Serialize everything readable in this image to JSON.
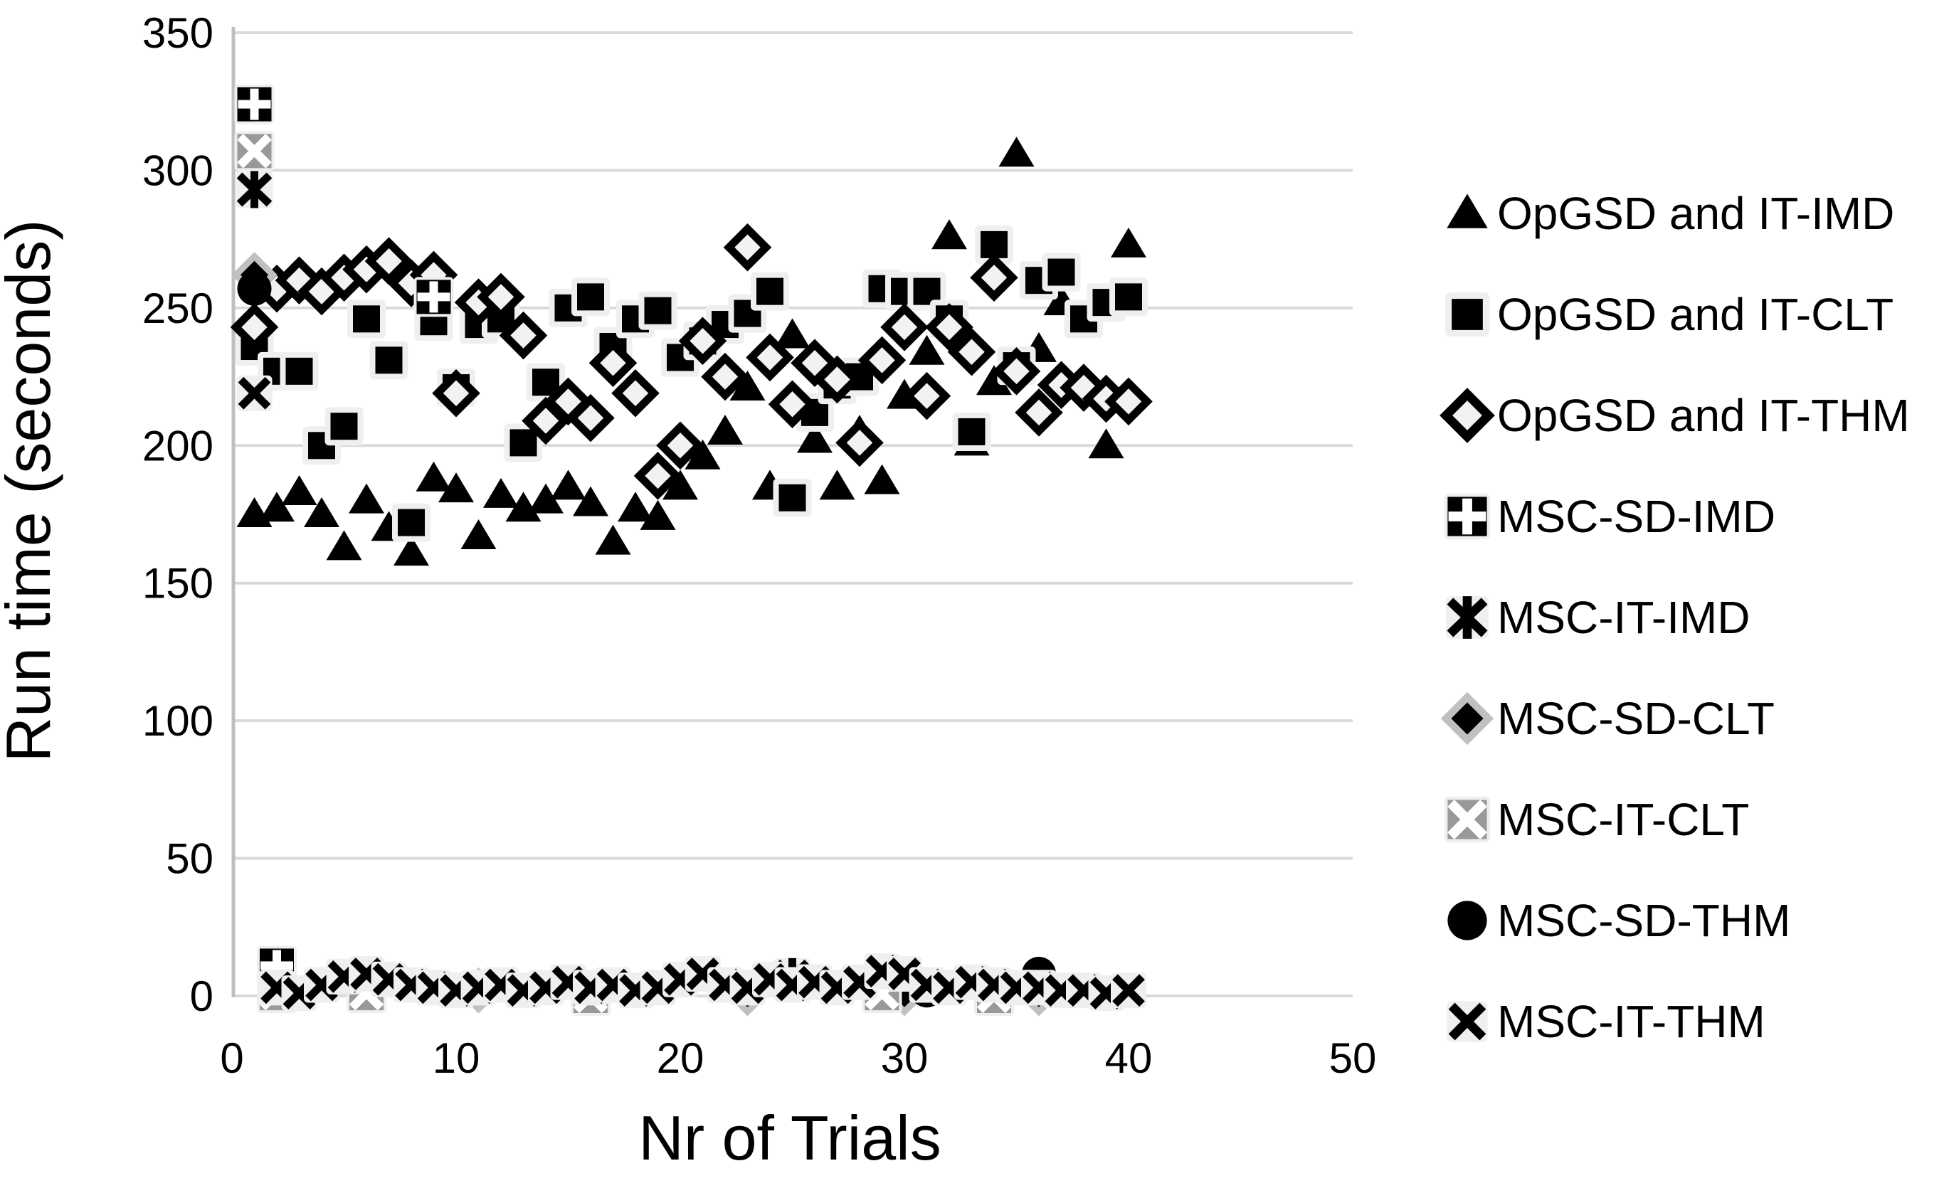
{
  "chart_data": {
    "type": "scatter",
    "title": "",
    "xlabel": "Nr of Trials",
    "ylabel": "Run time (seconds)",
    "xlim": [
      0,
      50
    ],
    "ylim": [
      0,
      350
    ],
    "x_ticks": [
      0,
      10,
      20,
      30,
      40,
      50
    ],
    "y_ticks": [
      0,
      50,
      100,
      150,
      200,
      250,
      300,
      350
    ],
    "grid": "horizontal",
    "legend_position": "right",
    "colors": {
      "marker_black": "#000000",
      "marker_gray": "#999999",
      "diamond_fill": "#f2f2f2",
      "halo": "#efefef",
      "gridline": "#d9d9d9",
      "axis_line": "#bfbfbf",
      "background": "#ffffff"
    },
    "series": [
      {
        "name": "OpGSD and IT-IMD",
        "marker": "triangle-filled",
        "color": "#000000",
        "points": [
          [
            1,
            175
          ],
          [
            2,
            177
          ],
          [
            3,
            183
          ],
          [
            4,
            175
          ],
          [
            5,
            163
          ],
          [
            6,
            180
          ],
          [
            7,
            170
          ],
          [
            8,
            161
          ],
          [
            9,
            188
          ],
          [
            10,
            184
          ],
          [
            11,
            167
          ],
          [
            12,
            182
          ],
          [
            13,
            177
          ],
          [
            14,
            180
          ],
          [
            15,
            185
          ],
          [
            16,
            179
          ],
          [
            17,
            165
          ],
          [
            18,
            177
          ],
          [
            19,
            174
          ],
          [
            20,
            185
          ],
          [
            21,
            196
          ],
          [
            22,
            205
          ],
          [
            23,
            221
          ],
          [
            24,
            185
          ],
          [
            25,
            240
          ],
          [
            26,
            202
          ],
          [
            27,
            185
          ],
          [
            28,
            205
          ],
          [
            29,
            187
          ],
          [
            30,
            218
          ],
          [
            31,
            234
          ],
          [
            32,
            276
          ],
          [
            33,
            201
          ],
          [
            34,
            223
          ],
          [
            35,
            306
          ],
          [
            36,
            235
          ],
          [
            37,
            252
          ],
          [
            38,
            246
          ],
          [
            39,
            200
          ],
          [
            40,
            273
          ]
        ]
      },
      {
        "name": "OpGSD and IT-CLT",
        "marker": "square-filled",
        "color": "#000000",
        "points": [
          [
            1,
            236
          ],
          [
            2,
            227
          ],
          [
            3,
            227
          ],
          [
            4,
            200
          ],
          [
            5,
            207
          ],
          [
            6,
            246
          ],
          [
            7,
            231
          ],
          [
            8,
            172
          ],
          [
            9,
            245
          ],
          [
            10,
            221
          ],
          [
            11,
            244
          ],
          [
            12,
            246
          ],
          [
            13,
            201
          ],
          [
            14,
            223
          ],
          [
            15,
            250
          ],
          [
            16,
            254
          ],
          [
            17,
            236
          ],
          [
            18,
            246
          ],
          [
            19,
            249
          ],
          [
            20,
            232
          ],
          [
            21,
            238
          ],
          [
            22,
            244
          ],
          [
            23,
            248
          ],
          [
            24,
            256
          ],
          [
            25,
            181
          ],
          [
            26,
            212
          ],
          [
            27,
            222
          ],
          [
            28,
            225
          ],
          [
            29,
            257
          ],
          [
            30,
            256
          ],
          [
            31,
            256
          ],
          [
            32,
            246
          ],
          [
            33,
            205
          ],
          [
            34,
            273
          ],
          [
            35,
            229
          ],
          [
            36,
            260
          ],
          [
            37,
            263
          ],
          [
            38,
            246
          ],
          [
            39,
            252
          ],
          [
            40,
            254
          ]
        ]
      },
      {
        "name": "OpGSD and IT-THM",
        "marker": "diamond-open",
        "color": "#000000",
        "points": [
          [
            1,
            243
          ],
          [
            2,
            257
          ],
          [
            3,
            260
          ],
          [
            4,
            256
          ],
          [
            5,
            261
          ],
          [
            6,
            264
          ],
          [
            7,
            267
          ],
          [
            8,
            259
          ],
          [
            9,
            262
          ],
          [
            10,
            219
          ],
          [
            11,
            252
          ],
          [
            12,
            254
          ],
          [
            13,
            240
          ],
          [
            14,
            209
          ],
          [
            15,
            216
          ],
          [
            16,
            210
          ],
          [
            17,
            230
          ],
          [
            18,
            219
          ],
          [
            19,
            189
          ],
          [
            20,
            200
          ],
          [
            21,
            238
          ],
          [
            22,
            225
          ],
          [
            23,
            272
          ],
          [
            24,
            232
          ],
          [
            25,
            215
          ],
          [
            26,
            230
          ],
          [
            27,
            224
          ],
          [
            28,
            201
          ],
          [
            29,
            231
          ],
          [
            30,
            243
          ],
          [
            31,
            218
          ],
          [
            32,
            243
          ],
          [
            33,
            234
          ],
          [
            34,
            261
          ],
          [
            35,
            227
          ],
          [
            36,
            212
          ],
          [
            37,
            222
          ],
          [
            38,
            221
          ],
          [
            39,
            217
          ],
          [
            40,
            216
          ]
        ]
      },
      {
        "name": "MSC-SD-IMD",
        "marker": "square-plus",
        "color": "#000000",
        "points": [
          [
            1,
            324
          ],
          [
            2,
            11
          ],
          [
            9,
            254
          ]
        ]
      },
      {
        "name": "MSC-IT-IMD",
        "marker": "asterisk",
        "color": "#000000",
        "points": [
          [
            1,
            293
          ],
          [
            25,
            7
          ]
        ]
      },
      {
        "name": "MSC-SD-CLT",
        "marker": "diamond-filled",
        "color": "#000000",
        "points": [
          [
            1,
            262
          ],
          [
            11,
            2
          ],
          [
            23,
            1
          ],
          [
            30,
            1
          ],
          [
            36,
            1
          ]
        ]
      },
      {
        "name": "MSC-IT-CLT",
        "marker": "square-x",
        "color": "#999999",
        "points": [
          [
            1,
            307
          ],
          [
            2,
            1
          ],
          [
            6,
            1
          ],
          [
            16,
            0
          ],
          [
            29,
            1
          ],
          [
            34,
            0
          ]
        ]
      },
      {
        "name": "MSC-SD-THM",
        "marker": "circle-filled",
        "color": "#000000",
        "points": [
          [
            1,
            257
          ],
          [
            31,
            2
          ],
          [
            36,
            8
          ]
        ]
      },
      {
        "name": "MSC-IT-THM",
        "marker": "x-mark",
        "color": "#000000",
        "points": [
          [
            1,
            219
          ],
          [
            2,
            3
          ],
          [
            3,
            1
          ],
          [
            4,
            4
          ],
          [
            5,
            7
          ],
          [
            6,
            8
          ],
          [
            7,
            6
          ],
          [
            8,
            4
          ],
          [
            9,
            3
          ],
          [
            10,
            2
          ],
          [
            11,
            3
          ],
          [
            12,
            4
          ],
          [
            13,
            2
          ],
          [
            14,
            3
          ],
          [
            15,
            5
          ],
          [
            16,
            3
          ],
          [
            17,
            4
          ],
          [
            18,
            2
          ],
          [
            19,
            3
          ],
          [
            20,
            6
          ],
          [
            21,
            8
          ],
          [
            22,
            4
          ],
          [
            23,
            3
          ],
          [
            24,
            6
          ],
          [
            25,
            4
          ],
          [
            26,
            5
          ],
          [
            27,
            3
          ],
          [
            28,
            5
          ],
          [
            29,
            9
          ],
          [
            30,
            8
          ],
          [
            31,
            4
          ],
          [
            32,
            3
          ],
          [
            33,
            5
          ],
          [
            34,
            4
          ],
          [
            35,
            3
          ],
          [
            36,
            3
          ],
          [
            37,
            2
          ],
          [
            38,
            2
          ],
          [
            39,
            1
          ],
          [
            40,
            2
          ]
        ]
      }
    ]
  }
}
